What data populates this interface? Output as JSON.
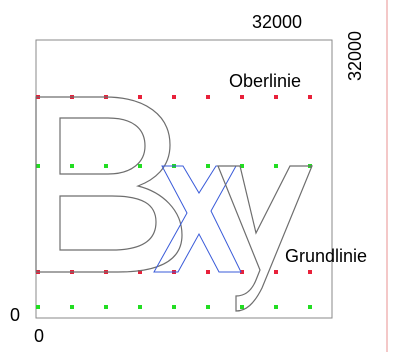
{
  "labels": {
    "x_max": "32000",
    "y_max": "32000",
    "oberlinie": "Oberlinie",
    "grundlinie": "Grundlinie",
    "origin_y": "0",
    "origin_x": "0"
  },
  "glyphs": {
    "B": "B",
    "x": "x",
    "y": "y"
  },
  "colors": {
    "frame": "#8a8a8a",
    "glyph_B": "#6e6e6e",
    "glyph_x": "#3a5bd9",
    "glyph_y": "#6e6e6e",
    "red_dots": "#e8213a",
    "green_dots": "#22dd22",
    "edge_line": "#f4c8c8"
  }
}
